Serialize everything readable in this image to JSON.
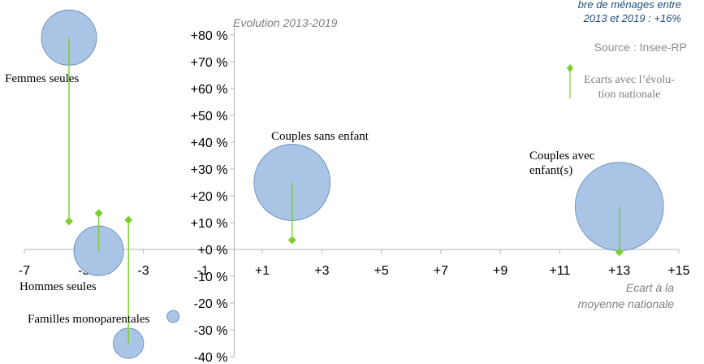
{
  "chart_data": {
    "type": "scatter",
    "subtype": "bubble",
    "title": "Evolution 2013-2019",
    "xlabel": "Ecart à la moyenne nationale",
    "xlabel_lines": [
      "Ecart à la",
      "moyenne nationale"
    ],
    "xlim": [
      -7,
      15
    ],
    "ylim": [
      -40,
      80
    ],
    "x_ticks": [
      "-7",
      "-5",
      "-3",
      "-1",
      "+1",
      "+3",
      "+5",
      "+7",
      "+9",
      "+11",
      "+13",
      "+15"
    ],
    "x_tick_values": [
      -7,
      -5,
      -3,
      -1,
      1,
      3,
      5,
      7,
      9,
      11,
      13,
      15
    ],
    "y_ticks": [
      "-40 %",
      "-30 %",
      "-20 %",
      "-10 %",
      "+0 %",
      "+10 %",
      "+20 %",
      "+30 %",
      "+40 %",
      "+50 %",
      "+60 %",
      "+70 %",
      "+80 %"
    ],
    "y_tick_values": [
      -40,
      -30,
      -20,
      -10,
      0,
      10,
      20,
      30,
      40,
      50,
      60,
      70,
      80
    ],
    "bubble_color": "#a9c4e4",
    "bubble_stroke": "#5f86b8",
    "marker_color": "#7ccd2e",
    "series": [
      {
        "label": "Femmes seules",
        "label_lines": [
          "Femmes seules"
        ],
        "x": -5.5,
        "y": 79,
        "size": 1.0,
        "reference_y": 10.5
      },
      {
        "label": "Hommes seules",
        "label_lines": [
          "Hommes seules"
        ],
        "x": -4.5,
        "y": -0.5,
        "size": 0.9,
        "reference_y": 13.5
      },
      {
        "label": "Familles monoparentales",
        "label_lines": [
          "Familles monoparentales"
        ],
        "x": -3.5,
        "y": -35,
        "size": 0.55,
        "reference_y": 11
      },
      {
        "label": "",
        "label_lines": [],
        "x": -2.0,
        "y": -25,
        "size": 0.22,
        "reference_y": null
      },
      {
        "label": "Couples sans enfant",
        "label_lines": [
          "Couples sans enfant"
        ],
        "x": 2.0,
        "y": 25,
        "size": 1.38,
        "reference_y": 3.5
      },
      {
        "label": "Couples avec enfant(s)",
        "label_lines": [
          "Couples avec",
          "enfant(s)"
        ],
        "x": 13.0,
        "y": 16,
        "size": 1.6,
        "reference_y": -1
      }
    ],
    "annotation_lines": [
      "bre de ménages entre",
      "2013 et 2019 : +16%"
    ],
    "source": "Source : Insee-RP",
    "legend_lines": [
      "Ecarts avec l’évolu-",
      "tion nationale"
    ]
  }
}
